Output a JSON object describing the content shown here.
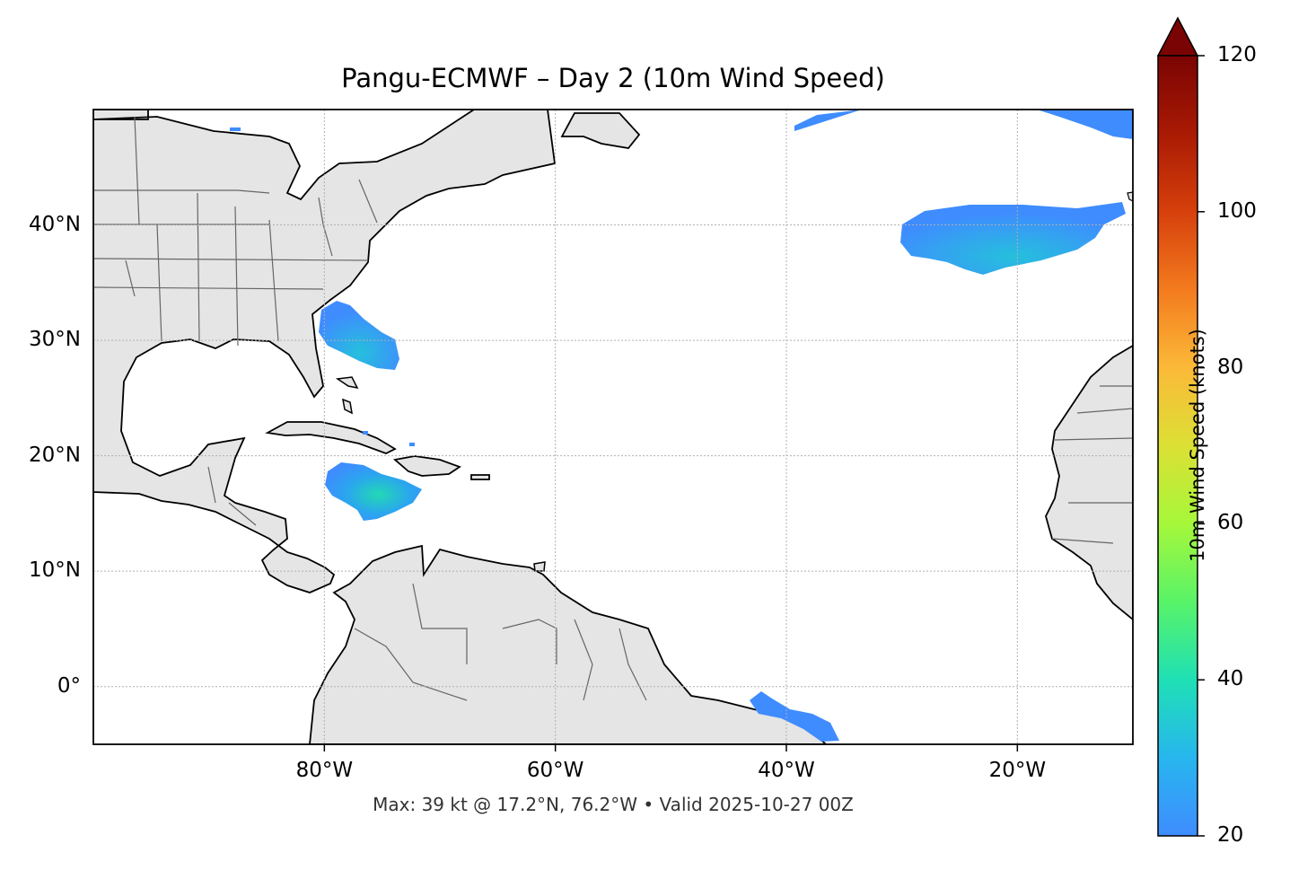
{
  "title": "Pangu-ECMWF – Day 2 (10m Wind Speed)",
  "footer": "Max: 39 kt @ 17.2°N, 76.2°W • Valid 2025-10-27 00Z",
  "map": {
    "extent_lon": [
      -100,
      -10
    ],
    "extent_lat": [
      -5,
      50
    ],
    "land_color": "#e5e5e5",
    "coast_color": "#000000",
    "border_color": "#666666",
    "grid": true,
    "x_ticks": [
      {
        "lon": -80,
        "label": "80°W"
      },
      {
        "lon": -60,
        "label": "60°W"
      },
      {
        "lon": -40,
        "label": "40°W"
      },
      {
        "lon": -20,
        "label": "20°W"
      }
    ],
    "y_ticks": [
      {
        "lat": 40,
        "label": "40°N"
      },
      {
        "lat": 30,
        "label": "30°N"
      },
      {
        "lat": 20,
        "label": "20°N"
      },
      {
        "lat": 10,
        "label": "10°N"
      },
      {
        "lat": 0,
        "label": "0°"
      }
    ]
  },
  "max_point": {
    "lat": 17.2,
    "lon": -76.2,
    "value_kt": 39
  },
  "colorbar": {
    "label": "10m Wind Speed (knots)",
    "min": 20,
    "max": 120,
    "extend": "max",
    "ticks": [
      "20",
      "40",
      "60",
      "80",
      "100",
      "120"
    ],
    "colors": [
      "#3f8cff",
      "#1ec8d8",
      "#24eb98",
      "#8cf645",
      "#d4e233",
      "#fbb938",
      "#f07a1e",
      "#d1380b",
      "#a01403",
      "#7a0403"
    ]
  }
}
